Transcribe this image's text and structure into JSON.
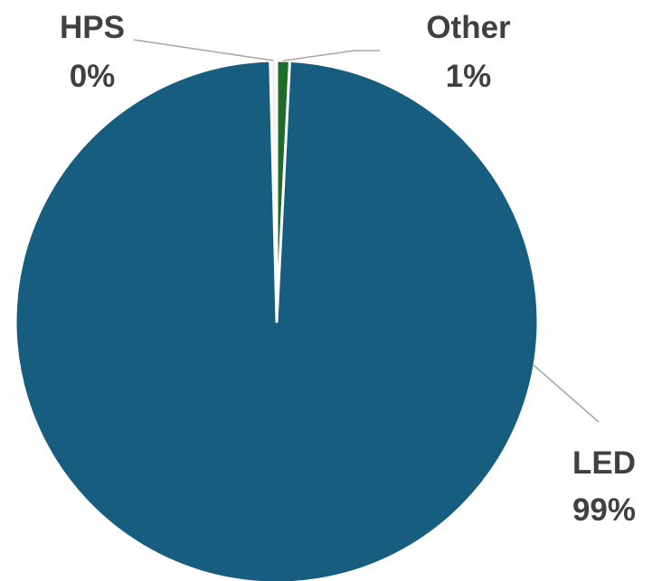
{
  "chart_data": {
    "type": "pie",
    "categories": [
      "HPS",
      "Other",
      "LED"
    ],
    "values": [
      0.4,
      0.8,
      98.8
    ],
    "labels": [
      {
        "name": "HPS",
        "percent": "0%"
      },
      {
        "name": "Other",
        "percent": "1%"
      },
      {
        "name": "LED",
        "percent": "99%"
      }
    ],
    "colors": [
      "#f2f2f2",
      "#1e6b2a",
      "#165d80"
    ],
    "slice_border_color": "#ffffff",
    "leader_line_color": "#a6a6a6",
    "label_color": "#404040",
    "legend": "none",
    "start_angle_deg": 0,
    "direction": "clockwise"
  }
}
